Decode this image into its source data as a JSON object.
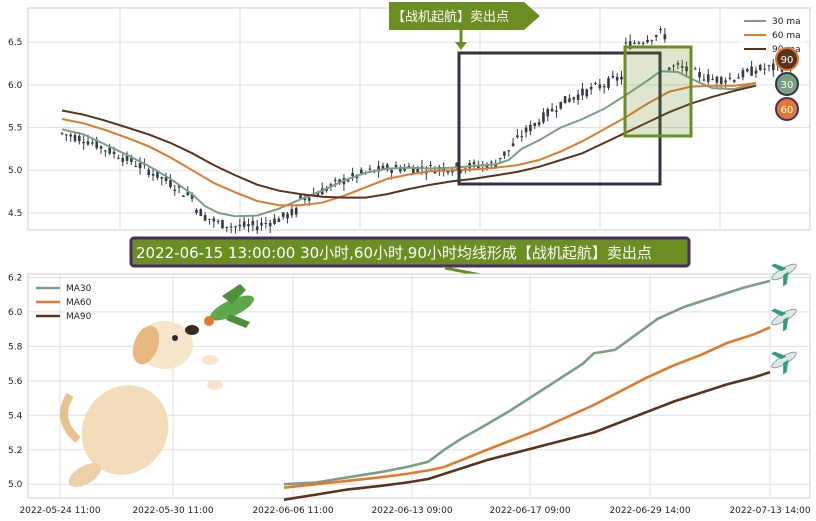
{
  "colors": {
    "ma30": "#7a9f83",
    "ma60": "#e07a2e",
    "ma90": "#5a331c",
    "candle": "#2f3a4a",
    "banner_green": "#6b8e23",
    "banner_purple": "#4b2a6b",
    "box_dark": "#2f3542",
    "box_green": "#6b8e23"
  },
  "top_panel": {
    "sell_tag": "【战机起航】卖出点",
    "legend": [
      "30 ma",
      "60 ma",
      "90 ma"
    ],
    "badges": [
      {
        "label": "90",
        "color": "#5a331c"
      },
      {
        "label": "30",
        "color": "#7a9f83"
      },
      {
        "label": "60",
        "color": "#e07a2e"
      }
    ]
  },
  "banner": {
    "text": "2022-06-15 13:00:00 30小时,60小时,90小时均线形成【战机起航】卖出点"
  },
  "bottom_panel": {
    "legend": [
      "MA30",
      "MA60",
      "MA90"
    ],
    "icons": [
      "dog-icon",
      "airplane-icon"
    ]
  },
  "chart_data": [
    {
      "type": "candlestick",
      "name": "price-with-moving-averages",
      "ylim": [
        4.3,
        6.9
      ],
      "yticks": [
        4.5,
        5.0,
        5.5,
        6.0,
        6.5
      ],
      "grid": true,
      "legend_position": "top-right",
      "annotation": "【战机起航】卖出点",
      "series": [
        {
          "name": "30 ma",
          "points": [
            [
              0,
              5.48
            ],
            [
              5,
              5.42
            ],
            [
              10,
              5.3
            ],
            [
              15,
              5.18
            ],
            [
              20,
              5.05
            ],
            [
              25,
              4.9
            ],
            [
              30,
              4.72
            ],
            [
              33,
              4.58
            ],
            [
              36,
              4.5
            ],
            [
              40,
              4.46
            ],
            [
              45,
              4.47
            ],
            [
              50,
              4.55
            ],
            [
              55,
              4.66
            ],
            [
              60,
              4.76
            ],
            [
              65,
              4.88
            ],
            [
              70,
              4.97
            ],
            [
              75,
              5.02
            ],
            [
              80,
              5.03
            ],
            [
              85,
              5.02
            ],
            [
              90,
              5.03
            ],
            [
              95,
              5.05
            ],
            [
              100,
              5.07
            ],
            [
              103,
              5.12
            ],
            [
              106,
              5.25
            ],
            [
              110,
              5.35
            ],
            [
              115,
              5.5
            ],
            [
              120,
              5.6
            ],
            [
              125,
              5.72
            ],
            [
              130,
              5.88
            ],
            [
              135,
              6.05
            ],
            [
              138,
              6.16
            ],
            [
              142,
              6.15
            ],
            [
              146,
              6.05
            ],
            [
              150,
              5.96
            ],
            [
              155,
              5.95
            ],
            [
              160,
              6.02
            ]
          ]
        },
        {
          "name": "60 ma",
          "points": [
            [
              0,
              5.6
            ],
            [
              5,
              5.55
            ],
            [
              10,
              5.47
            ],
            [
              15,
              5.38
            ],
            [
              20,
              5.28
            ],
            [
              25,
              5.15
            ],
            [
              30,
              5.0
            ],
            [
              35,
              4.85
            ],
            [
              40,
              4.74
            ],
            [
              45,
              4.64
            ],
            [
              50,
              4.59
            ],
            [
              55,
              4.59
            ],
            [
              60,
              4.62
            ],
            [
              65,
              4.7
            ],
            [
              70,
              4.8
            ],
            [
              75,
              4.9
            ],
            [
              80,
              4.95
            ],
            [
              85,
              4.99
            ],
            [
              90,
              5.0
            ],
            [
              95,
              5.01
            ],
            [
              100,
              5.03
            ],
            [
              105,
              5.06
            ],
            [
              110,
              5.12
            ],
            [
              115,
              5.22
            ],
            [
              120,
              5.34
            ],
            [
              125,
              5.48
            ],
            [
              130,
              5.62
            ],
            [
              135,
              5.78
            ],
            [
              140,
              5.92
            ],
            [
              145,
              5.98
            ],
            [
              150,
              5.99
            ],
            [
              155,
              5.99
            ],
            [
              160,
              6.02
            ]
          ]
        },
        {
          "name": "90 ma",
          "points": [
            [
              0,
              5.7
            ],
            [
              5,
              5.65
            ],
            [
              10,
              5.58
            ],
            [
              15,
              5.5
            ],
            [
              20,
              5.42
            ],
            [
              25,
              5.32
            ],
            [
              30,
              5.2
            ],
            [
              35,
              5.06
            ],
            [
              40,
              4.94
            ],
            [
              45,
              4.83
            ],
            [
              50,
              4.76
            ],
            [
              55,
              4.72
            ],
            [
              60,
              4.69
            ],
            [
              65,
              4.68
            ],
            [
              70,
              4.68
            ],
            [
              75,
              4.72
            ],
            [
              80,
              4.78
            ],
            [
              85,
              4.83
            ],
            [
              90,
              4.87
            ],
            [
              95,
              4.9
            ],
            [
              100,
              4.94
            ],
            [
              105,
              4.98
            ],
            [
              110,
              5.04
            ],
            [
              115,
              5.12
            ],
            [
              120,
              5.2
            ],
            [
              125,
              5.32
            ],
            [
              130,
              5.44
            ],
            [
              135,
              5.56
            ],
            [
              140,
              5.68
            ],
            [
              145,
              5.78
            ],
            [
              150,
              5.86
            ],
            [
              155,
              5.93
            ],
            [
              160,
              5.99
            ]
          ]
        }
      ]
    },
    {
      "type": "line",
      "name": "moving-averages-after-signal",
      "x": [
        "2022-05-24 11:00",
        "2022-05-30 11:00",
        "2022-06-06 11:00",
        "2022-06-13 09:00",
        "2022-06-17 09:00",
        "2022-06-29 14:00",
        "2022-07-13 14:00"
      ],
      "ylim": [
        4.92,
        6.22
      ],
      "yticks": [
        5.0,
        5.2,
        5.4,
        5.6,
        5.8,
        6.0,
        6.2
      ],
      "grid": true,
      "legend_position": "top-left",
      "series": [
        {
          "name": "MA30",
          "points": [
            [
              0,
              5.0
            ],
            [
              6,
              5.01
            ],
            [
              12,
              5.04
            ],
            [
              18,
              5.07
            ],
            [
              23,
              5.1
            ],
            [
              27,
              5.13
            ],
            [
              30,
              5.2
            ],
            [
              33,
              5.26
            ],
            [
              37,
              5.33
            ],
            [
              42,
              5.42
            ],
            [
              47,
              5.52
            ],
            [
              52,
              5.62
            ],
            [
              56,
              5.7
            ],
            [
              58,
              5.76
            ],
            [
              62,
              5.78
            ],
            [
              66,
              5.87
            ],
            [
              70,
              5.96
            ],
            [
              75,
              6.03
            ],
            [
              80,
              6.08
            ],
            [
              86,
              6.14
            ],
            [
              91,
              6.18
            ]
          ]
        },
        {
          "name": "MA60",
          "points": [
            [
              0,
              4.98
            ],
            [
              6,
              5.0
            ],
            [
              12,
              5.02
            ],
            [
              18,
              5.04
            ],
            [
              23,
              5.06
            ],
            [
              27,
              5.08
            ],
            [
              30,
              5.1
            ],
            [
              34,
              5.15
            ],
            [
              38,
              5.2
            ],
            [
              43,
              5.26
            ],
            [
              48,
              5.32
            ],
            [
              53,
              5.39
            ],
            [
              58,
              5.46
            ],
            [
              63,
              5.54
            ],
            [
              68,
              5.62
            ],
            [
              73,
              5.69
            ],
            [
              78,
              5.75
            ],
            [
              83,
              5.82
            ],
            [
              88,
              5.87
            ],
            [
              91,
              5.91
            ]
          ]
        },
        {
          "name": "MA90",
          "points": [
            [
              0,
              4.91
            ],
            [
              6,
              4.94
            ],
            [
              12,
              4.97
            ],
            [
              18,
              4.99
            ],
            [
              23,
              5.01
            ],
            [
              27,
              5.03
            ],
            [
              30,
              5.06
            ],
            [
              34,
              5.1
            ],
            [
              38,
              5.14
            ],
            [
              43,
              5.18
            ],
            [
              48,
              5.22
            ],
            [
              53,
              5.26
            ],
            [
              58,
              5.3
            ],
            [
              63,
              5.36
            ],
            [
              68,
              5.42
            ],
            [
              73,
              5.48
            ],
            [
              78,
              5.53
            ],
            [
              83,
              5.58
            ],
            [
              88,
              5.62
            ],
            [
              91,
              5.65
            ]
          ]
        }
      ]
    }
  ]
}
